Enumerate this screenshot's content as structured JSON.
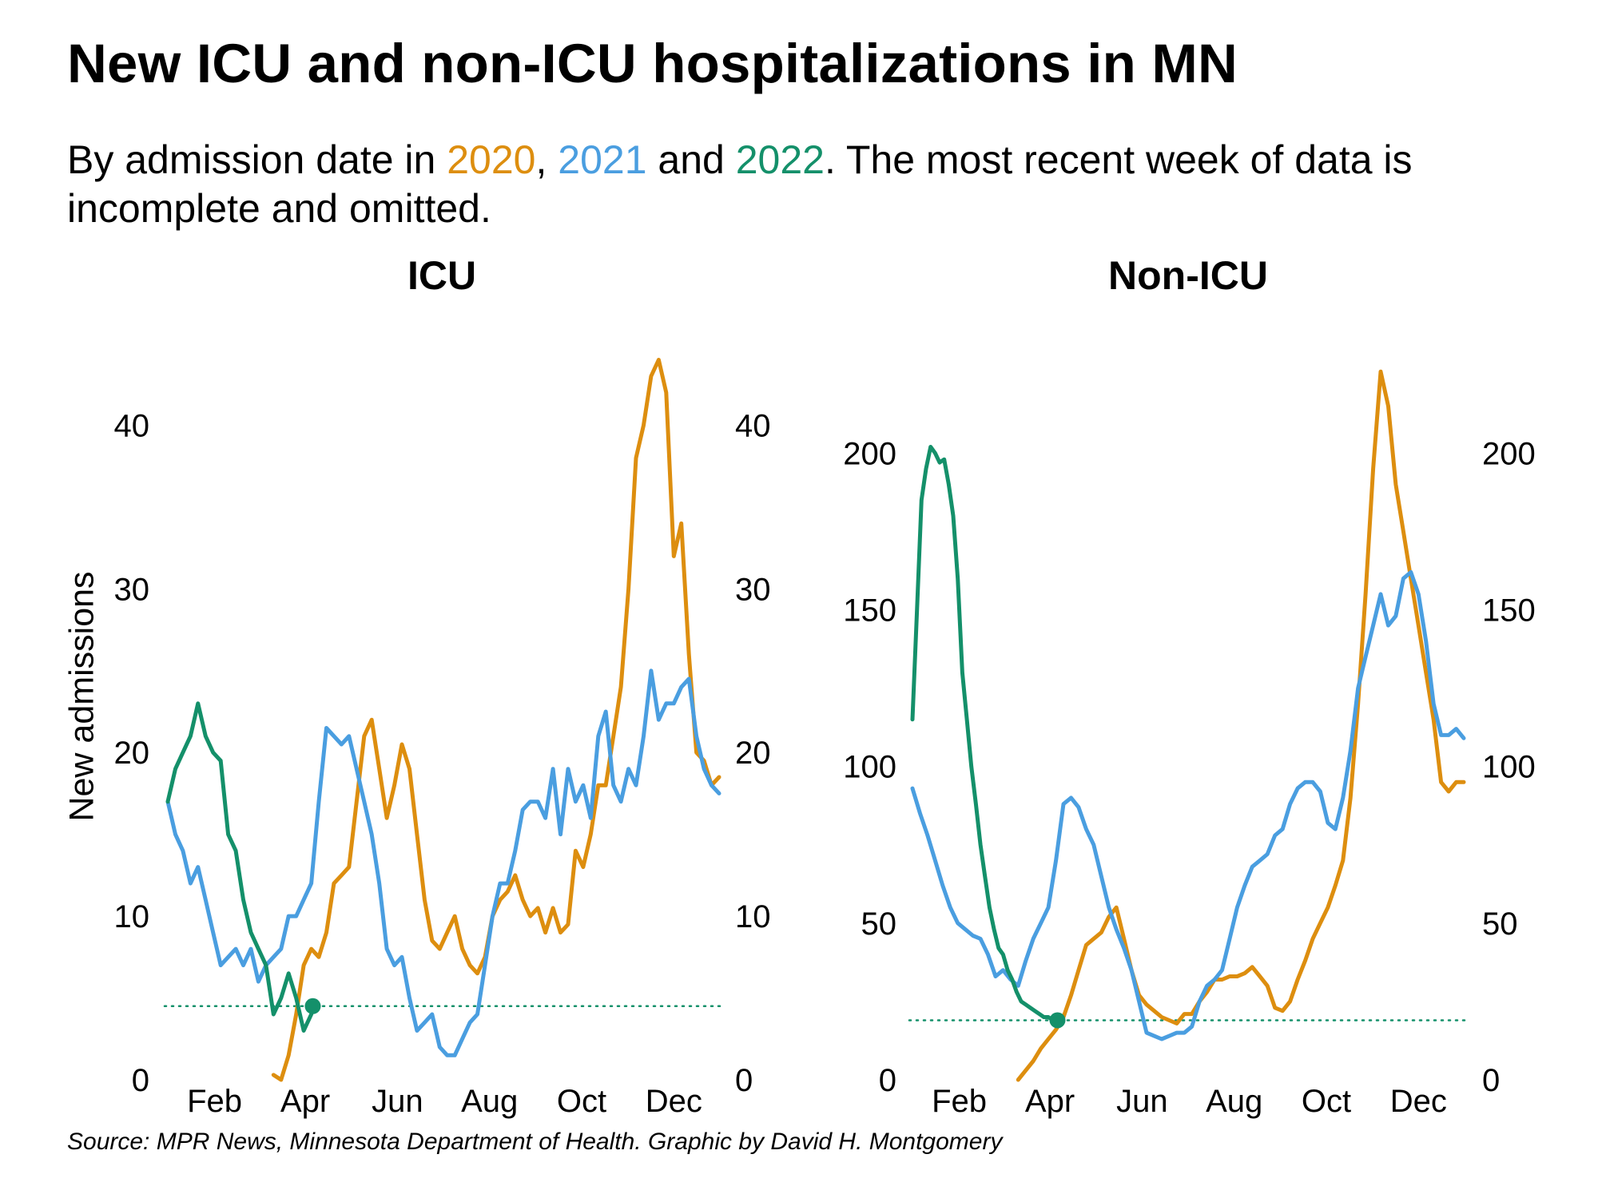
{
  "header": {
    "title": "New ICU and non-ICU hospitalizations in MN",
    "subtitle_pre": "By admission date in ",
    "year_2020": "2020",
    "sep1": ", ",
    "year_2021": "2021",
    "sep2": " and ",
    "year_2022": "2022",
    "subtitle_post": ". The most recent week of data is incomplete and omitted."
  },
  "source": "Source: MPR News, Minnesota Department of Health. Graphic by David H. Montgomery",
  "ylabel": "New admissions",
  "colors": {
    "2020": "#dd8e0f",
    "2021": "#4a9ee0",
    "2022": "#14906a"
  },
  "chart_data": [
    {
      "type": "line",
      "title": "ICU",
      "xlabel": "",
      "ylabel": "New admissions",
      "xlim": [
        0,
        365
      ],
      "ylim": [
        0,
        45
      ],
      "yticks": [
        0,
        10,
        20,
        30,
        40
      ],
      "xticks": [
        {
          "day": 31,
          "label": "Feb"
        },
        {
          "day": 91,
          "label": "Apr"
        },
        {
          "day": 152,
          "label": "Jun"
        },
        {
          "day": 213,
          "label": "Aug"
        },
        {
          "day": 274,
          "label": "Oct"
        },
        {
          "day": 335,
          "label": "Dec"
        }
      ],
      "series": [
        {
          "name": "2020",
          "x": [
            70,
            75,
            80,
            85,
            90,
            95,
            100,
            105,
            110,
            115,
            120,
            125,
            130,
            135,
            140,
            145,
            150,
            155,
            160,
            165,
            170,
            175,
            180,
            185,
            190,
            195,
            200,
            205,
            210,
            215,
            220,
            225,
            230,
            235,
            240,
            245,
            250,
            255,
            260,
            265,
            270,
            275,
            280,
            285,
            290,
            295,
            300,
            305,
            310,
            315,
            320,
            325,
            330,
            335,
            340,
            345,
            350,
            355,
            360,
            365
          ],
          "y": [
            0.3,
            0,
            1.5,
            4,
            7,
            8,
            7.5,
            9,
            12,
            12.5,
            13,
            17,
            21,
            22,
            19,
            16,
            18,
            20.5,
            19,
            15,
            11,
            8.5,
            8,
            9,
            10,
            8,
            7,
            6.5,
            7.5,
            10,
            11,
            11.5,
            12.5,
            11,
            10,
            10.5,
            9,
            10.5,
            9,
            9.5,
            14,
            13,
            15,
            18,
            18,
            21,
            24,
            30,
            38,
            40,
            43,
            44,
            42,
            32,
            34,
            26,
            20,
            19.5,
            18,
            18.5
          ]
        },
        {
          "name": "2021",
          "x": [
            0,
            5,
            10,
            15,
            20,
            25,
            30,
            35,
            40,
            45,
            50,
            55,
            60,
            65,
            70,
            75,
            80,
            85,
            90,
            95,
            100,
            105,
            110,
            115,
            120,
            125,
            130,
            135,
            140,
            145,
            150,
            155,
            160,
            165,
            170,
            175,
            180,
            185,
            190,
            195,
            200,
            205,
            210,
            215,
            220,
            225,
            230,
            235,
            240,
            245,
            250,
            255,
            260,
            265,
            270,
            275,
            280,
            285,
            290,
            295,
            300,
            305,
            310,
            315,
            320,
            325,
            330,
            335,
            340,
            345,
            350,
            355,
            360,
            365
          ],
          "y": [
            17,
            15,
            14,
            12,
            13,
            11,
            9,
            7,
            7.5,
            8,
            7,
            8,
            6,
            7,
            7.5,
            8,
            10,
            10,
            11,
            12,
            17,
            21.5,
            21,
            20.5,
            21,
            19,
            17,
            15,
            12,
            8,
            7,
            7.5,
            5,
            3,
            3.5,
            4,
            2,
            1.5,
            1.5,
            2.5,
            3.5,
            4,
            7,
            10,
            12,
            12,
            14,
            16.5,
            17,
            17,
            16,
            19,
            15,
            19,
            17,
            18,
            16,
            21,
            22.5,
            18,
            17,
            19,
            18,
            21,
            25,
            22,
            23,
            23,
            24,
            24.5,
            21,
            19,
            18,
            17.5
          ]
        },
        {
          "name": "2022",
          "x": [
            0,
            5,
            10,
            15,
            20,
            25,
            30,
            35,
            40,
            45,
            50,
            55,
            60,
            65,
            70,
            75,
            80,
            85,
            90,
            95,
            96
          ],
          "y": [
            17,
            19,
            20,
            21,
            23,
            21,
            20,
            19.5,
            15,
            14,
            11,
            9,
            8,
            7,
            4,
            5,
            6.5,
            5,
            3,
            4,
            4.5
          ]
        }
      ],
      "reference_line": {
        "series": "2022",
        "value": 4.5
      }
    },
    {
      "type": "line",
      "title": "Non-ICU",
      "xlabel": "",
      "ylabel": "",
      "xlim": [
        0,
        365
      ],
      "ylim": [
        0,
        235
      ],
      "yticks": [
        0,
        50,
        100,
        150,
        200
      ],
      "xticks": [
        {
          "day": 31,
          "label": "Feb"
        },
        {
          "day": 91,
          "label": "Apr"
        },
        {
          "day": 152,
          "label": "Jun"
        },
        {
          "day": 213,
          "label": "Aug"
        },
        {
          "day": 274,
          "label": "Oct"
        },
        {
          "day": 335,
          "label": "Dec"
        }
      ],
      "series": [
        {
          "name": "2020",
          "x": [
            70,
            75,
            80,
            85,
            90,
            95,
            100,
            105,
            110,
            115,
            120,
            125,
            130,
            135,
            140,
            145,
            150,
            155,
            160,
            165,
            170,
            175,
            180,
            185,
            190,
            195,
            200,
            205,
            210,
            215,
            220,
            225,
            230,
            235,
            240,
            245,
            250,
            255,
            260,
            265,
            270,
            275,
            280,
            285,
            290,
            295,
            300,
            305,
            310,
            315,
            320,
            325,
            330,
            335,
            340,
            345,
            350,
            355,
            360,
            365
          ],
          "y": [
            0,
            3,
            6,
            10,
            13,
            16,
            20,
            27,
            35,
            43,
            45,
            47,
            52,
            55,
            45,
            35,
            27,
            24,
            22,
            20,
            19,
            18,
            21,
            21,
            25,
            28,
            32,
            32,
            33,
            33,
            34,
            36,
            33,
            30,
            23,
            22,
            25,
            32,
            38,
            45,
            50,
            55,
            62,
            70,
            90,
            120,
            155,
            195,
            226,
            215,
            190,
            175,
            160,
            145,
            130,
            115,
            95,
            92,
            95,
            95
          ]
        },
        {
          "name": "2021",
          "x": [
            0,
            5,
            10,
            15,
            20,
            25,
            30,
            35,
            40,
            45,
            50,
            55,
            60,
            65,
            70,
            75,
            80,
            85,
            90,
            95,
            100,
            105,
            110,
            115,
            120,
            125,
            130,
            135,
            140,
            145,
            150,
            155,
            160,
            165,
            170,
            175,
            180,
            185,
            190,
            195,
            200,
            205,
            210,
            215,
            220,
            225,
            230,
            235,
            240,
            245,
            250,
            255,
            260,
            265,
            270,
            275,
            280,
            285,
            290,
            295,
            300,
            305,
            310,
            315,
            320,
            325,
            330,
            335,
            340,
            345,
            350,
            355,
            360,
            365
          ],
          "y": [
            93,
            85,
            78,
            70,
            62,
            55,
            50,
            48,
            46,
            45,
            40,
            33,
            35,
            32,
            30,
            38,
            45,
            50,
            55,
            70,
            88,
            90,
            87,
            80,
            75,
            65,
            55,
            48,
            42,
            35,
            25,
            15,
            14,
            13,
            14,
            15,
            15,
            17,
            25,
            30,
            32,
            35,
            45,
            55,
            62,
            68,
            70,
            72,
            78,
            80,
            88,
            93,
            95,
            95,
            92,
            82,
            80,
            90,
            105,
            125,
            135,
            145,
            155,
            145,
            148,
            160,
            162,
            155,
            140,
            120,
            110,
            110,
            112,
            109
          ]
        },
        {
          "name": "2022",
          "x": [
            0,
            3,
            6,
            9,
            12,
            15,
            18,
            21,
            24,
            27,
            30,
            33,
            36,
            39,
            42,
            45,
            48,
            51,
            54,
            57,
            60,
            63,
            66,
            69,
            72,
            75,
            78,
            81,
            84,
            87,
            90,
            93,
            96
          ],
          "y": [
            115,
            150,
            185,
            195,
            202,
            200,
            197,
            198,
            190,
            180,
            160,
            130,
            115,
            100,
            88,
            75,
            65,
            55,
            48,
            42,
            40,
            35,
            32,
            28,
            25,
            24,
            23,
            22,
            21,
            20,
            20,
            19,
            19
          ]
        }
      ],
      "reference_line": {
        "series": "2022",
        "value": 19
      }
    }
  ]
}
